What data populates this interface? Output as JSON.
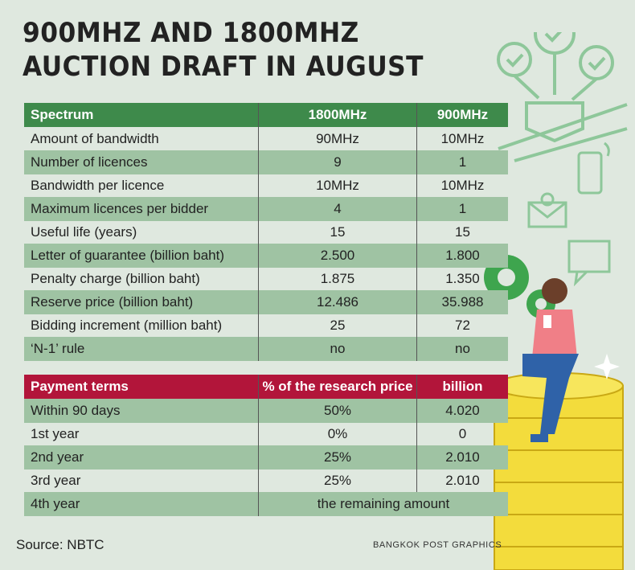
{
  "title": {
    "line1": "900MHZ AND 1800MHZ",
    "line2": "AUCTION DRAFT IN AUGUST"
  },
  "spectrum_table": {
    "headers": [
      "Spectrum",
      "1800MHz",
      "900MHz"
    ],
    "rows": [
      [
        "Amount of bandwidth",
        "90MHz",
        "10MHz"
      ],
      [
        "Number of licences",
        "9",
        "1"
      ],
      [
        "Bandwidth per licence",
        "10MHz",
        "10MHz"
      ],
      [
        "Maximum licences per bidder",
        "4",
        "1"
      ],
      [
        "Useful life (years)",
        "15",
        "15"
      ],
      [
        "Letter of guarantee (billion baht)",
        "2.500",
        "1.800"
      ],
      [
        "Penalty charge (billion baht)",
        "1.875",
        "1.350"
      ],
      [
        "Reserve price (billion baht)",
        "12.486",
        "35.988"
      ],
      [
        "Bidding increment (million baht)",
        "25",
        "72"
      ],
      [
        "‘N-1’ rule",
        "no",
        "no"
      ]
    ]
  },
  "payment_table": {
    "headers": [
      "Payment terms",
      "% of the research price",
      "billion"
    ],
    "rows": [
      [
        "Within 90 days",
        "50%",
        "4.020"
      ],
      [
        "1st  year",
        "0%",
        "0"
      ],
      [
        "2nd year",
        "25%",
        "2.010"
      ],
      [
        "3rd year",
        "25%",
        "2.010"
      ]
    ],
    "last_row": [
      "4th year",
      "the remaining amount"
    ]
  },
  "footer": {
    "source": "Source: NBTC",
    "credit": "BANGKOK POST GRAPHICS"
  },
  "colors": {
    "green_header": "#3e8a4b",
    "red_header": "#b2153a",
    "shade": "#9fc3a3",
    "background": "#dfe8df",
    "coin": "#f3dc3c"
  }
}
